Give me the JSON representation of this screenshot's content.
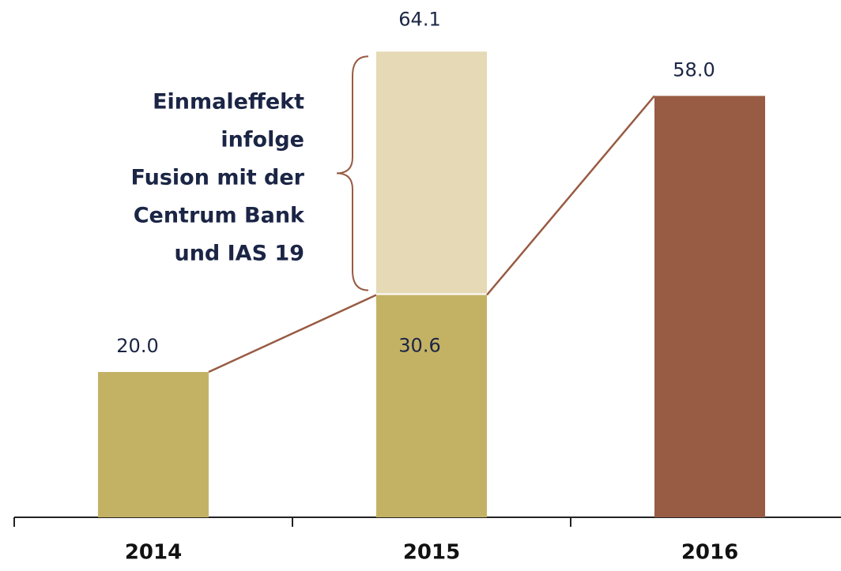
{
  "chart_data": {
    "type": "stacked-bar",
    "categories": [
      "2014",
      "2015",
      "2016"
    ],
    "series": [
      {
        "colors": [
          "#c4b264",
          "#c4b264",
          "#985b43"
        ],
        "values": [
          20.0,
          30.6,
          58.0
        ],
        "value_labels": [
          "20.0",
          "30.6",
          "58.0"
        ]
      },
      {
        "color": "#e5d9b6",
        "values": [
          null,
          33.5,
          null
        ]
      }
    ],
    "totals": [
      null,
      64.1,
      null
    ],
    "annotation": [
      "Einmaleffekt",
      "infolge",
      "Fusion mit der",
      "Centrum Bank",
      "und IAS 19"
    ],
    "ylim": [
      0,
      71.2
    ]
  }
}
